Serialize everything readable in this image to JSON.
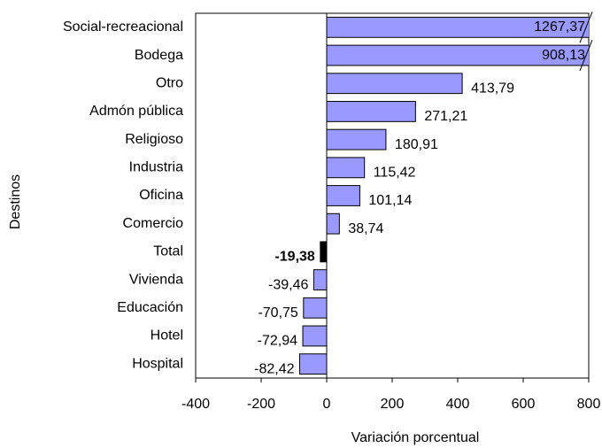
{
  "chart_data": {
    "type": "bar",
    "orientation": "horizontal",
    "categories": [
      "Social-recreacional",
      "Bodega",
      "Otro",
      "Admón pública",
      "Religioso",
      "Industria",
      "Oficina",
      "Comercio",
      "Total",
      "Vivienda",
      "Educación",
      "Hotel",
      "Hospital"
    ],
    "values": [
      1267.37,
      908.13,
      413.79,
      271.21,
      180.91,
      115.42,
      101.14,
      38.74,
      -19.38,
      -39.46,
      -70.75,
      -72.94,
      -82.42
    ],
    "value_labels": [
      "1267,37",
      "908,13",
      "413,79",
      "271,21",
      "180,91",
      "115,42",
      "101,14",
      "38,74",
      "-19,38",
      "-39,46",
      "-70,75",
      "-72,94",
      "-82,42"
    ],
    "colors": [
      "#9999ff",
      "#9999ff",
      "#9999ff",
      "#9999ff",
      "#9999ff",
      "#9999ff",
      "#9999ff",
      "#9999ff",
      "#000000",
      "#9999ff",
      "#9999ff",
      "#9999ff",
      "#9999ff"
    ],
    "xlim": [
      -400,
      800
    ],
    "xticks": [
      -400,
      -200,
      0,
      200,
      400,
      600,
      800
    ],
    "xlabel": "Variación porcentual",
    "ylabel": "Destinos"
  }
}
